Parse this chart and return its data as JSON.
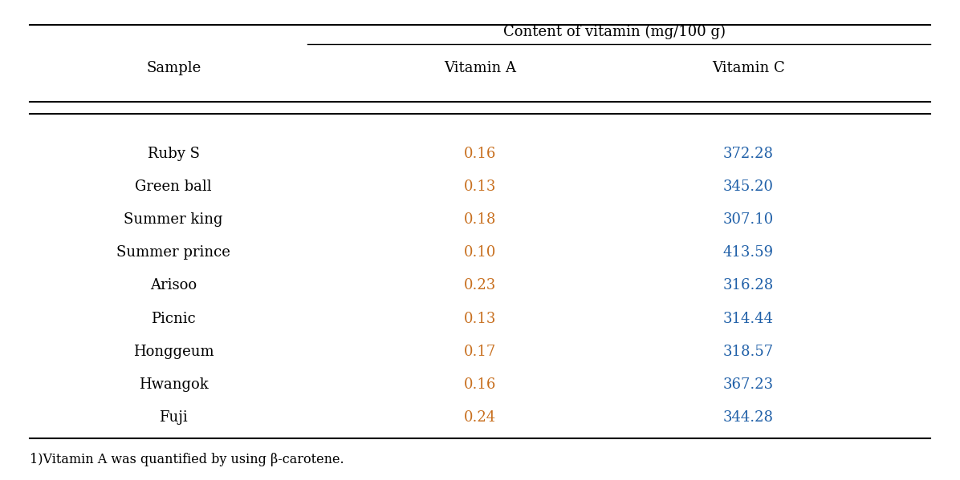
{
  "title": "Content of vitamin (mg/100 g)",
  "col_sample": "Sample",
  "col_vit_a": "Vitamin A",
  "col_vit_c": "Vitamin C",
  "rows": [
    {
      "sample": "Ruby S",
      "vit_a": "0.16",
      "vit_c": "372.28"
    },
    {
      "sample": "Green ball",
      "vit_a": "0.13",
      "vit_c": "345.20"
    },
    {
      "sample": "Summer king",
      "vit_a": "0.18",
      "vit_c": "307.10"
    },
    {
      "sample": "Summer prince",
      "vit_a": "0.10",
      "vit_c": "413.59"
    },
    {
      "sample": "Arisoo",
      "vit_a": "0.23",
      "vit_c": "316.28"
    },
    {
      "sample": "Picnic",
      "vit_a": "0.13",
      "vit_c": "314.44"
    },
    {
      "sample": "Honggeum",
      "vit_a": "0.17",
      "vit_c": "318.57"
    },
    {
      "sample": "Hwangok",
      "vit_a": "0.16",
      "vit_c": "367.23"
    },
    {
      "sample": "Fuji",
      "vit_a": "0.24",
      "vit_c": "344.28"
    }
  ],
  "footnote": "1)Vitamin A was quantified by using β-carotene.",
  "vit_a_color": "#c87020",
  "vit_c_color": "#2060a8",
  "sample_color": "#000000",
  "header_color": "#000000",
  "bg_color": "#ffffff",
  "border_color": "#000000",
  "font_size": 13,
  "title_font_size": 13,
  "footnote_font_size": 11.5
}
